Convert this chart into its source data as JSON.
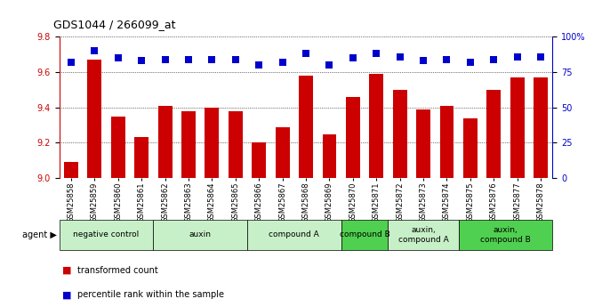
{
  "title": "GDS1044 / 266099_at",
  "samples": [
    "GSM25858",
    "GSM25859",
    "GSM25860",
    "GSM25861",
    "GSM25862",
    "GSM25863",
    "GSM25864",
    "GSM25865",
    "GSM25866",
    "GSM25867",
    "GSM25868",
    "GSM25869",
    "GSM25870",
    "GSM25871",
    "GSM25872",
    "GSM25873",
    "GSM25874",
    "GSM25875",
    "GSM25876",
    "GSM25877",
    "GSM25878"
  ],
  "bar_values": [
    9.09,
    9.67,
    9.35,
    9.23,
    9.41,
    9.38,
    9.4,
    9.38,
    9.2,
    9.29,
    9.58,
    9.25,
    9.46,
    9.59,
    9.5,
    9.39,
    9.41,
    9.34,
    9.5,
    9.57,
    9.57
  ],
  "percentile_values": [
    82,
    90,
    85,
    83,
    84,
    84,
    84,
    84,
    80,
    82,
    88,
    80,
    85,
    88,
    86,
    83,
    84,
    82,
    84,
    86,
    86
  ],
  "ylim_left": [
    9.0,
    9.8
  ],
  "ylim_right": [
    0,
    100
  ],
  "yticks_left": [
    9.0,
    9.2,
    9.4,
    9.6,
    9.8
  ],
  "yticks_right": [
    0,
    25,
    50,
    75,
    100
  ],
  "bar_color": "#cc0000",
  "dot_color": "#0000cc",
  "agent_groups": [
    {
      "label": "negative control",
      "start": 0,
      "end": 3,
      "color": "#c8f0c8"
    },
    {
      "label": "auxin",
      "start": 4,
      "end": 7,
      "color": "#c8f0c8"
    },
    {
      "label": "compound A",
      "start": 8,
      "end": 11,
      "color": "#c8f0c8"
    },
    {
      "label": "compound B",
      "start": 12,
      "end": 13,
      "color": "#50d050"
    },
    {
      "label": "auxin,\ncompound A",
      "start": 14,
      "end": 16,
      "color": "#c8f0c8"
    },
    {
      "label": "auxin,\ncompound B",
      "start": 17,
      "end": 20,
      "color": "#50d050"
    }
  ],
  "legend_bar_label": "transformed count",
  "legend_dot_label": "percentile rank within the sample",
  "bar_width": 0.6,
  "dot_size": 40,
  "dot_marker": "s",
  "right_axis_label_color": "#0000cc",
  "left_axis_label_color": "#cc0000",
  "fig_width": 6.68,
  "fig_height": 3.45,
  "dpi": 100
}
